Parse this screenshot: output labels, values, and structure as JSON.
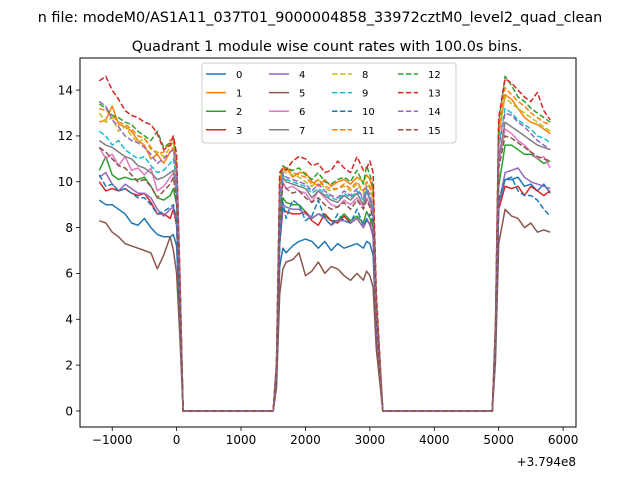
{
  "chart_data": {
    "type": "line",
    "suptitle": "n file: modeM0/AS1A11_037T01_9000004858_33972cztM0_level2_quad_clean",
    "title": "Quadrant 1 module wise count rates with 100.0s bins.",
    "xlabel": "",
    "ylabel": "",
    "x_offset_label": "+3.794e8",
    "xlim": [
      -1500,
      6200
    ],
    "ylim": [
      -0.7,
      15.4
    ],
    "xticks": [
      -1000,
      0,
      1000,
      2000,
      3000,
      4000,
      5000,
      6000
    ],
    "yticks": [
      0,
      2,
      4,
      6,
      8,
      10,
      12,
      14
    ],
    "grid": false,
    "legend_position": "top-center",
    "legend_columns": 4,
    "x": [
      -1200,
      -1100,
      -1000,
      -900,
      -800,
      -700,
      -600,
      -500,
      -400,
      -300,
      -200,
      -100,
      -50,
      0,
      50,
      100,
      200,
      300,
      400,
      500,
      600,
      700,
      800,
      900,
      1000,
      1100,
      1200,
      1300,
      1400,
      1500,
      1550,
      1600,
      1650,
      1700,
      1800,
      1900,
      2000,
      2100,
      2200,
      2300,
      2400,
      2500,
      2600,
      2700,
      2800,
      2900,
      2950,
      3000,
      3050,
      3100,
      3200,
      3300,
      3400,
      3500,
      3600,
      3700,
      3800,
      3900,
      4000,
      4100,
      4200,
      4300,
      4400,
      4500,
      4600,
      4700,
      4800,
      4900,
      4950,
      5000,
      5050,
      5100,
      5200,
      5300,
      5400,
      5500,
      5600,
      5700,
      5800
    ],
    "series": [
      {
        "name": "0",
        "color": "#1f77b4",
        "style": "solid",
        "on1": [
          9.2,
          9.0,
          9.0,
          8.8,
          8.6,
          8.2,
          8.1,
          8.4,
          8.0,
          7.7,
          7.6,
          7.6,
          7.7,
          7.2
        ],
        "on2": [
          6.3,
          7.1,
          6.9,
          7.2,
          7.4,
          7.5,
          7.4,
          7.1,
          7.4,
          7.0,
          7.3,
          7.1,
          7.2,
          7.3,
          7.1,
          7.4,
          7.3,
          6.8
        ],
        "on3": [
          9.0,
          10.1,
          10.1,
          10.2,
          9.8,
          9.9,
          9.6,
          9.9,
          9.5,
          9.5
        ]
      },
      {
        "name": "1",
        "color": "#ff7f0e",
        "style": "solid",
        "on1": [
          12.6,
          12.7,
          13.3,
          12.5,
          12.4,
          12.2,
          11.8,
          11.6,
          11.0,
          11.2,
          10.8,
          11.3,
          11.5,
          10.1
        ],
        "on2": [
          9.8,
          10.6,
          10.6,
          10.2,
          10.4,
          10.4,
          10.0,
          9.8,
          10.1,
          9.8,
          10.0,
          10.1,
          9.9,
          10.2,
          10.0,
          10.3,
          10.1,
          9.6
        ],
        "on3": [
          12.0,
          13.8,
          13.6,
          13.2,
          12.8,
          12.6,
          12.5,
          12.3,
          12.1,
          12.0
        ]
      },
      {
        "name": "2",
        "color": "#2ca02c",
        "style": "solid",
        "on1": [
          10.5,
          11.1,
          10.3,
          10.1,
          10.2,
          10.1,
          10.1,
          10.2,
          9.8,
          9.3,
          9.2,
          9.4,
          9.7,
          9.0
        ],
        "on2": [
          7.8,
          9.3,
          9.1,
          9.0,
          9.0,
          8.7,
          8.4,
          8.6,
          8.5,
          8.3,
          8.3,
          8.6,
          8.3,
          8.5,
          8.2,
          8.7,
          8.4,
          8.0
        ],
        "on3": [
          9.8,
          11.6,
          11.6,
          11.4,
          11.2,
          11.2,
          11.0,
          10.8,
          10.9,
          10.6
        ]
      },
      {
        "name": "3",
        "color": "#d62728",
        "style": "solid",
        "on1": [
          10.0,
          9.6,
          9.7,
          9.6,
          9.7,
          9.5,
          9.4,
          9.5,
          9.1,
          8.6,
          8.6,
          8.4,
          8.8,
          8.1
        ],
        "on2": [
          7.3,
          8.8,
          8.7,
          8.6,
          8.6,
          8.7,
          8.3,
          8.1,
          8.6,
          8.3,
          8.2,
          8.5,
          8.2,
          8.4,
          8.0,
          8.3,
          8.2,
          7.6
        ],
        "on3": [
          8.8,
          9.8,
          9.7,
          9.8,
          9.4,
          9.8,
          9.6,
          9.4,
          9.6,
          9.6
        ]
      },
      {
        "name": "4",
        "color": "#9467bd",
        "style": "solid",
        "on1": [
          10.2,
          10.4,
          9.9,
          9.6,
          9.9,
          9.7,
          9.5,
          9.5,
          9.3,
          8.8,
          8.5,
          8.8,
          8.9,
          8.3
        ],
        "on2": [
          7.6,
          9.0,
          8.9,
          8.8,
          8.8,
          8.6,
          8.4,
          8.6,
          8.4,
          8.1,
          8.3,
          8.3,
          8.2,
          8.4,
          8.0,
          8.4,
          8.1,
          7.6
        ],
        "on3": [
          9.0,
          10.4,
          10.5,
          10.6,
          10.2,
          10.0,
          9.9,
          9.8,
          9.7,
          9.6
        ]
      },
      {
        "name": "5",
        "color": "#8c564b",
        "style": "solid",
        "on1": [
          8.3,
          8.2,
          7.8,
          7.6,
          7.3,
          7.2,
          7.1,
          7.0,
          6.9,
          6.2,
          6.8,
          7.6,
          7.0,
          6.0
        ],
        "on2": [
          5.1,
          6.2,
          6.5,
          6.6,
          6.9,
          5.9,
          6.1,
          6.5,
          6.0,
          6.3,
          6.2,
          5.9,
          5.7,
          6.0,
          5.7,
          6.1,
          5.9,
          5.4
        ],
        "on3": [
          7.3,
          8.8,
          8.5,
          8.4,
          8.0,
          8.2,
          7.8,
          7.9,
          7.8,
          7.7
        ]
      },
      {
        "name": "6",
        "color": "#e377c2",
        "style": "solid",
        "on1": [
          11.5,
          11.0,
          11.2,
          10.7,
          11.1,
          10.5,
          10.6,
          10.3,
          10.6,
          9.6,
          9.8,
          10.2,
          10.4,
          9.4
        ],
        "on2": [
          8.5,
          10.0,
          9.7,
          9.8,
          9.6,
          9.5,
          9.1,
          9.6,
          9.3,
          9.0,
          8.9,
          9.2,
          9.0,
          9.3,
          8.9,
          9.3,
          9.0,
          8.5
        ],
        "on3": [
          10.8,
          12.3,
          12.1,
          11.8,
          11.6,
          11.3,
          11.0,
          11.1,
          10.6,
          10.2
        ]
      },
      {
        "name": "7",
        "color": "#7f7f7f",
        "style": "solid",
        "on1": [
          11.8,
          11.6,
          11.5,
          11.3,
          11.1,
          11.0,
          10.7,
          10.6,
          10.4,
          10.1,
          10.2,
          10.4,
          10.5,
          9.8
        ],
        "on2": [
          8.6,
          10.2,
          10.0,
          9.9,
          9.8,
          9.7,
          9.3,
          9.6,
          9.4,
          9.2,
          9.1,
          9.4,
          9.2,
          9.5,
          9.0,
          9.6,
          9.2,
          8.7
        ],
        "on3": [
          11.0,
          12.6,
          12.4,
          12.2,
          12.0,
          11.8,
          11.6,
          11.5,
          11.4,
          11.3
        ]
      },
      {
        "name": "8",
        "color": "#bcbd22",
        "style": "dashed",
        "on1": [
          13.0,
          12.6,
          12.8,
          12.2,
          12.4,
          12.0,
          11.7,
          11.9,
          11.4,
          11.3,
          11.1,
          11.5,
          11.8,
          10.7
        ],
        "on2": [
          9.9,
          10.5,
          10.4,
          10.3,
          10.2,
          10.0,
          9.8,
          10.1,
          9.7,
          9.6,
          9.7,
          9.8,
          9.6,
          9.9,
          9.5,
          10.0,
          9.7,
          9.2
        ],
        "on3": [
          12.2,
          13.7,
          13.4,
          13.2,
          13.0,
          12.8,
          12.6,
          12.4,
          12.2,
          12.1
        ]
      },
      {
        "name": "9",
        "color": "#17becf",
        "style": "dashed",
        "on1": [
          12.2,
          12.0,
          11.6,
          11.8,
          11.4,
          11.2,
          11.0,
          11.1,
          10.7,
          10.4,
          10.5,
          10.8,
          11.0,
          10.0
        ],
        "on2": [
          9.0,
          10.3,
          10.1,
          10.0,
          9.9,
          9.8,
          9.5,
          9.7,
          9.5,
          9.3,
          9.2,
          9.5,
          9.3,
          9.6,
          9.2,
          9.7,
          9.3,
          8.8
        ],
        "on3": [
          11.6,
          13.2,
          13.0,
          12.7,
          12.5,
          12.3,
          12.0,
          11.9,
          11.7,
          11.2
        ]
      },
      {
        "name": "10",
        "color": "#1f77b4",
        "style": "dashed",
        "on1": [
          10.3,
          9.8,
          9.9,
          9.6,
          9.7,
          9.5,
          9.3,
          9.3,
          9.0,
          8.6,
          8.7,
          8.9,
          9.0,
          8.3
        ],
        "on2": [
          7.3,
          9.1,
          8.4,
          9.2,
          9.0,
          8.3,
          8.5,
          9.2,
          8.4,
          8.1,
          8.6,
          8.3,
          8.2,
          8.8,
          8.1,
          8.3,
          8.6,
          8.2
        ],
        "on3": [
          9.2,
          10.1,
          10.2,
          9.6,
          9.4,
          9.4,
          9.2,
          8.8,
          8.5,
          8.4
        ]
      },
      {
        "name": "11",
        "color": "#ff7f0e",
        "style": "dashed",
        "on1": [
          13.2,
          13.1,
          12.9,
          12.6,
          12.5,
          12.3,
          12.0,
          11.9,
          11.5,
          11.2,
          11.3,
          11.8,
          11.9,
          10.8
        ],
        "on2": [
          10.0,
          10.6,
          10.6,
          10.4,
          10.3,
          10.2,
          9.9,
          10.1,
          9.8,
          9.7,
          9.7,
          9.9,
          9.7,
          10.0,
          9.6,
          10.0,
          9.8,
          9.3
        ],
        "on3": [
          12.3,
          14.1,
          13.8,
          13.5,
          13.3,
          13.0,
          12.8,
          12.6,
          12.5,
          12.3
        ]
      },
      {
        "name": "12",
        "color": "#2ca02c",
        "style": "dashed",
        "on1": [
          13.4,
          13.2,
          12.9,
          12.8,
          12.6,
          12.5,
          12.2,
          12.0,
          11.8,
          12.2,
          11.5,
          11.7,
          12.0,
          11.0
        ],
        "on2": [
          10.2,
          10.7,
          10.6,
          10.5,
          10.6,
          10.3,
          10.1,
          10.4,
          10.0,
          9.9,
          10.1,
          10.2,
          10.0,
          10.5,
          9.9,
          10.7,
          10.3,
          9.8
        ],
        "on3": [
          12.6,
          14.6,
          14.2,
          13.7,
          13.5,
          13.2,
          13.0,
          12.8,
          12.6,
          12.4
        ]
      },
      {
        "name": "13",
        "color": "#d62728",
        "style": "dashed",
        "on1": [
          14.4,
          14.6,
          14.0,
          13.6,
          13.1,
          12.9,
          12.8,
          12.6,
          12.5,
          12.1,
          11.4,
          11.6,
          12.0,
          11.2
        ],
        "on2": [
          10.4,
          10.6,
          10.5,
          10.9,
          11.1,
          11.0,
          10.7,
          10.8,
          10.4,
          10.5,
          10.9,
          10.6,
          10.4,
          11.1,
          10.5,
          10.6,
          10.9,
          10.4
        ],
        "on3": [
          12.8,
          14.5,
          14.3,
          14.0,
          13.7,
          13.5,
          13.9,
          13.1,
          12.7,
          12.3
        ]
      },
      {
        "name": "14",
        "color": "#9467bd",
        "style": "dashed",
        "on1": [
          13.5,
          13.3,
          12.7,
          12.4,
          12.0,
          11.8,
          11.7,
          11.5,
          11.2,
          10.8,
          11.0,
          11.3,
          11.4,
          10.5
        ],
        "on2": [
          9.5,
          10.4,
          10.2,
          10.1,
          10.0,
          9.9,
          9.6,
          9.9,
          9.6,
          9.4,
          9.3,
          9.6,
          9.4,
          9.7,
          9.3,
          9.8,
          9.4,
          8.9
        ],
        "on3": [
          11.5,
          13.0,
          12.9,
          12.6,
          12.4,
          12.1,
          11.8,
          11.6,
          11.4,
          11.2
        ]
      },
      {
        "name": "15",
        "color": "#8c564b",
        "style": "dashed",
        "on1": [
          11.5,
          11.3,
          11.0,
          10.7,
          10.6,
          10.3,
          10.0,
          10.1,
          9.8,
          9.3,
          9.6,
          9.9,
          10.2,
          9.2
        ],
        "on2": [
          8.4,
          9.9,
          9.7,
          9.5,
          9.6,
          9.3,
          9.1,
          9.3,
          9.0,
          8.8,
          8.9,
          9.1,
          8.8,
          9.2,
          8.8,
          9.2,
          8.9,
          8.4
        ],
        "on3": [
          10.6,
          12.0,
          11.9,
          11.7,
          11.5,
          11.3,
          11.1,
          11.0,
          10.9,
          10.7
        ]
      }
    ]
  }
}
